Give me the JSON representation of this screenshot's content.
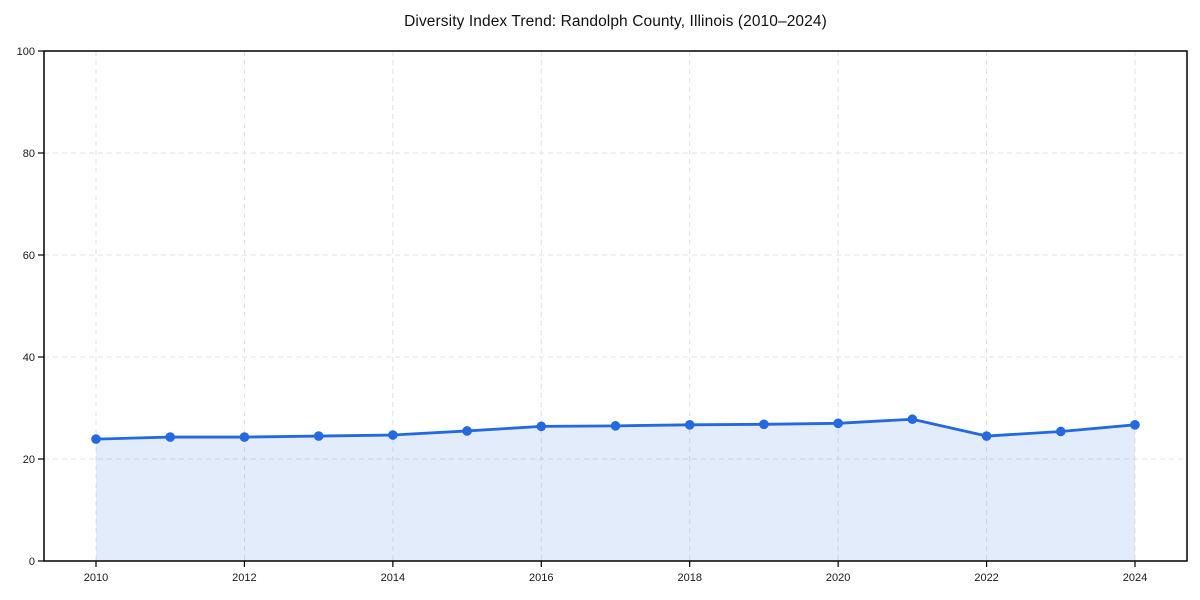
{
  "page": {
    "background_color": "#ffffff"
  },
  "chart_data": {
    "type": "area",
    "title": "Diversity Index Trend: Randolph County, Illinois (2010–2024)",
    "xlabel": "",
    "ylabel": "",
    "x": [
      2010,
      2011,
      2012,
      2013,
      2014,
      2015,
      2016,
      2017,
      2018,
      2019,
      2020,
      2021,
      2022,
      2023,
      2024
    ],
    "values": [
      23.9,
      24.3,
      24.3,
      24.5,
      24.7,
      25.5,
      26.4,
      26.5,
      26.7,
      26.8,
      27.0,
      27.8,
      24.5,
      25.4,
      26.7
    ],
    "ylim": [
      0,
      100
    ],
    "y_ticks": [
      0,
      20,
      40,
      60,
      80,
      100
    ],
    "x_tick_labels": [
      "2010",
      "2012",
      "2014",
      "2016",
      "2018",
      "2020",
      "2022",
      "2024"
    ],
    "x_tick_years": [
      2010,
      2012,
      2014,
      2016,
      2018,
      2020,
      2022,
      2024
    ],
    "grid": "dashed, both axes, at labeled ticks",
    "legend_position": "none",
    "marker": "circle",
    "colors": {
      "line": "#2469e0",
      "marker": "#2469e0",
      "area_fill": "rgba(36,105,224,0.13)",
      "gridline": "#e2e2e2",
      "spine": "#000000",
      "tick_label": "#1a1a1a",
      "title": "#111111",
      "background": "#ffffff"
    }
  }
}
